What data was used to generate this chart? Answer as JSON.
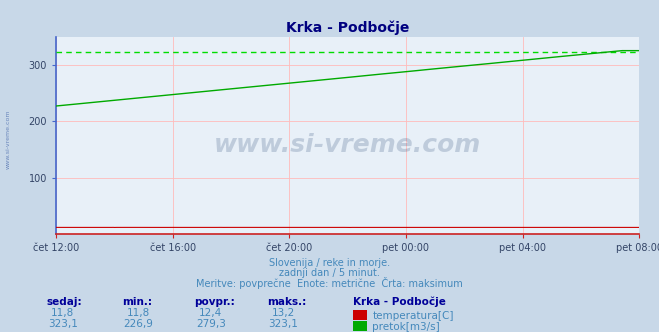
{
  "title": "Krka - Podbočje",
  "title_color": "#000080",
  "bg_color": "#c8d8e8",
  "plot_bg_color": "#e8f0f8",
  "grid_color": "#ffbbbb",
  "x_tick_labels": [
    "čet 12:00",
    "čet 16:00",
    "čet 20:00",
    "pet 00:00",
    "pet 04:00",
    "pet 08:00"
  ],
  "x_ticks_pos": [
    0,
    96,
    192,
    288,
    384,
    480
  ],
  "n_points": 481,
  "temp_color": "#cc0000",
  "flow_color": "#00aa00",
  "flow_dashed_color": "#00dd00",
  "flow_max_val": 323.1,
  "ylim_min": 0,
  "ylim_max": 350,
  "yticks": [
    100,
    200,
    300
  ],
  "left_spine_color": "#4466cc",
  "bottom_spine_color": "#cc2222",
  "subtitle1": "Slovenija / reke in morje.",
  "subtitle2": "zadnji dan / 5 minut.",
  "subtitle3": "Meritve: povprečne  Enote: metrične  Črta: maksimum",
  "subtitle_color": "#4488bb",
  "watermark": "www.si-vreme.com",
  "watermark_color": "#1a3a6a",
  "left_label": "www.si-vreme.com",
  "left_label_color": "#4466aa",
  "legend_title": "Krka - Podbočje",
  "legend_label1": "temperatura[C]",
  "legend_label2": "pretok[m3/s]",
  "table_headers": [
    "sedaj:",
    "min.:",
    "povpr.:",
    "maks.:"
  ],
  "table_row1": [
    "11,8",
    "11,8",
    "12,4",
    "13,2"
  ],
  "table_row2": [
    "323,1",
    "226,9",
    "279,3",
    "323,1"
  ],
  "table_color": "#4488bb",
  "table_header_color": "#000099"
}
